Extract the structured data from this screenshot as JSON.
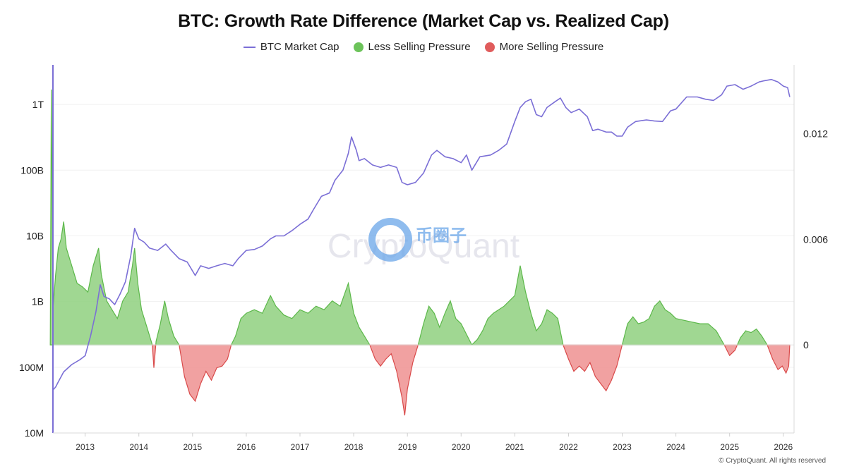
{
  "title": "BTC: Growth Rate Difference (Market Cap vs. Realized Cap)",
  "legend": {
    "market_cap": {
      "label": "BTC Market Cap",
      "color": "#7b6fd6"
    },
    "less_selling": {
      "label": "Less Selling Pressure",
      "color": "#6cc35a"
    },
    "more_selling": {
      "label": "More Selling Pressure",
      "color": "#e05c5c"
    }
  },
  "watermark": "CryptoQuant",
  "watermark_cn": "币圈子",
  "copyright": "© CryptoQuant. All rights reserved",
  "chart_data": {
    "type": "line",
    "x_range": [
      2012.4,
      2026.2
    ],
    "x_ticks": [
      "2013",
      "2014",
      "2015",
      "2016",
      "2017",
      "2018",
      "2019",
      "2020",
      "2021",
      "2022",
      "2023",
      "2024",
      "2025",
      "2026"
    ],
    "y_left": {
      "scale": "log",
      "range": [
        10000000,
        4000000000000
      ],
      "ticks": [
        "10M",
        "100M",
        "1B",
        "10B",
        "100B",
        "1T"
      ]
    },
    "y_right": {
      "scale": "linear",
      "range": [
        -0.005,
        0.0159
      ],
      "ticks": [
        "0",
        "0.006",
        "0.012"
      ]
    },
    "series": [
      {
        "name": "BTC Market Cap",
        "axis": "left",
        "points": [
          [
            2012.4,
            45000000
          ],
          [
            2012.45,
            50000000
          ],
          [
            2012.5,
            60000000
          ],
          [
            2012.6,
            85000000
          ],
          [
            2012.75,
            110000000
          ],
          [
            2012.9,
            130000000
          ],
          [
            2013.0,
            150000000
          ],
          [
            2013.1,
            300000000
          ],
          [
            2013.2,
            700000000
          ],
          [
            2013.28,
            1800000000
          ],
          [
            2013.35,
            1200000000
          ],
          [
            2013.45,
            1100000000
          ],
          [
            2013.55,
            900000000
          ],
          [
            2013.65,
            1300000000
          ],
          [
            2013.75,
            2000000000
          ],
          [
            2013.85,
            5000000000
          ],
          [
            2013.92,
            13000000000
          ],
          [
            2014.0,
            9000000000
          ],
          [
            2014.1,
            8000000000
          ],
          [
            2014.2,
            6500000000
          ],
          [
            2014.35,
            6000000000
          ],
          [
            2014.5,
            7500000000
          ],
          [
            2014.6,
            6000000000
          ],
          [
            2014.75,
            4500000000
          ],
          [
            2014.9,
            4000000000
          ],
          [
            2015.05,
            2500000000
          ],
          [
            2015.15,
            3500000000
          ],
          [
            2015.3,
            3200000000
          ],
          [
            2015.45,
            3500000000
          ],
          [
            2015.6,
            3800000000
          ],
          [
            2015.75,
            3500000000
          ],
          [
            2015.85,
            4500000000
          ],
          [
            2016.0,
            6000000000
          ],
          [
            2016.15,
            6200000000
          ],
          [
            2016.3,
            7000000000
          ],
          [
            2016.45,
            9000000000
          ],
          [
            2016.55,
            10000000000
          ],
          [
            2016.7,
            10000000000
          ],
          [
            2016.85,
            12000000000
          ],
          [
            2017.0,
            15000000000
          ],
          [
            2017.15,
            18000000000
          ],
          [
            2017.25,
            25000000000
          ],
          [
            2017.4,
            40000000000
          ],
          [
            2017.55,
            45000000000
          ],
          [
            2017.65,
            70000000000
          ],
          [
            2017.8,
            100000000000
          ],
          [
            2017.9,
            180000000000
          ],
          [
            2017.96,
            320000000000
          ],
          [
            2018.05,
            200000000000
          ],
          [
            2018.1,
            140000000000
          ],
          [
            2018.2,
            150000000000
          ],
          [
            2018.35,
            120000000000
          ],
          [
            2018.5,
            110000000000
          ],
          [
            2018.65,
            120000000000
          ],
          [
            2018.8,
            110000000000
          ],
          [
            2018.9,
            65000000000
          ],
          [
            2019.0,
            60000000000
          ],
          [
            2019.15,
            65000000000
          ],
          [
            2019.3,
            90000000000
          ],
          [
            2019.45,
            170000000000
          ],
          [
            2019.55,
            200000000000
          ],
          [
            2019.7,
            160000000000
          ],
          [
            2019.85,
            150000000000
          ],
          [
            2020.0,
            130000000000
          ],
          [
            2020.1,
            170000000000
          ],
          [
            2020.2,
            100000000000
          ],
          [
            2020.35,
            160000000000
          ],
          [
            2020.55,
            170000000000
          ],
          [
            2020.7,
            200000000000
          ],
          [
            2020.85,
            250000000000
          ],
          [
            2021.0,
            550000000000
          ],
          [
            2021.1,
            900000000000
          ],
          [
            2021.2,
            1100000000000
          ],
          [
            2021.3,
            1200000000000
          ],
          [
            2021.4,
            700000000000
          ],
          [
            2021.5,
            650000000000
          ],
          [
            2021.6,
            900000000000
          ],
          [
            2021.75,
            1100000000000
          ],
          [
            2021.85,
            1250000000000
          ],
          [
            2021.95,
            900000000000
          ],
          [
            2022.05,
            750000000000
          ],
          [
            2022.2,
            850000000000
          ],
          [
            2022.35,
            650000000000
          ],
          [
            2022.45,
            400000000000
          ],
          [
            2022.55,
            420000000000
          ],
          [
            2022.7,
            380000000000
          ],
          [
            2022.8,
            380000000000
          ],
          [
            2022.9,
            330000000000
          ],
          [
            2023.0,
            330000000000
          ],
          [
            2023.1,
            450000000000
          ],
          [
            2023.25,
            550000000000
          ],
          [
            2023.45,
            580000000000
          ],
          [
            2023.6,
            560000000000
          ],
          [
            2023.75,
            550000000000
          ],
          [
            2023.9,
            800000000000
          ],
          [
            2024.0,
            850000000000
          ],
          [
            2024.2,
            1300000000000
          ],
          [
            2024.4,
            1300000000000
          ],
          [
            2024.55,
            1200000000000
          ],
          [
            2024.7,
            1150000000000
          ],
          [
            2024.85,
            1400000000000
          ],
          [
            2024.95,
            1900000000000
          ],
          [
            2025.1,
            2000000000000
          ],
          [
            2025.25,
            1700000000000
          ],
          [
            2025.4,
            1900000000000
          ],
          [
            2025.55,
            2200000000000
          ],
          [
            2025.65,
            2300000000000
          ],
          [
            2025.78,
            2400000000000
          ],
          [
            2025.9,
            2200000000000
          ],
          [
            2026.0,
            1900000000000
          ],
          [
            2026.08,
            1800000000000
          ],
          [
            2026.12,
            1300000000000
          ]
        ]
      },
      {
        "name": "Growth Rate Difference",
        "axis": "right",
        "points": [
          [
            2012.35,
            0.0
          ],
          [
            2012.37,
            0.0145
          ],
          [
            2012.4,
            0.002
          ],
          [
            2012.45,
            0.004
          ],
          [
            2012.5,
            0.0055
          ],
          [
            2012.55,
            0.006
          ],
          [
            2012.6,
            0.007
          ],
          [
            2012.65,
            0.0055
          ],
          [
            2012.75,
            0.0045
          ],
          [
            2012.85,
            0.0035
          ],
          [
            2012.95,
            0.0033
          ],
          [
            2013.05,
            0.003
          ],
          [
            2013.15,
            0.0045
          ],
          [
            2013.25,
            0.0055
          ],
          [
            2013.3,
            0.004
          ],
          [
            2013.4,
            0.0025
          ],
          [
            2013.5,
            0.002
          ],
          [
            2013.6,
            0.0015
          ],
          [
            2013.7,
            0.0025
          ],
          [
            2013.8,
            0.003
          ],
          [
            2013.88,
            0.0045
          ],
          [
            2013.92,
            0.0055
          ],
          [
            2013.98,
            0.0035
          ],
          [
            2014.05,
            0.002
          ],
          [
            2014.15,
            0.001
          ],
          [
            2014.25,
            0.0
          ],
          [
            2014.28,
            -0.0013
          ],
          [
            2014.32,
            0.0002
          ],
          [
            2014.4,
            0.0012
          ],
          [
            2014.48,
            0.0025
          ],
          [
            2014.55,
            0.0015
          ],
          [
            2014.65,
            0.0005
          ],
          [
            2014.75,
            0.0
          ],
          [
            2014.85,
            -0.0018
          ],
          [
            2014.95,
            -0.0028
          ],
          [
            2015.05,
            -0.0032
          ],
          [
            2015.15,
            -0.0022
          ],
          [
            2015.25,
            -0.0015
          ],
          [
            2015.35,
            -0.002
          ],
          [
            2015.45,
            -0.0013
          ],
          [
            2015.55,
            -0.0012
          ],
          [
            2015.65,
            -0.0008
          ],
          [
            2015.72,
            0.0
          ],
          [
            2015.8,
            0.0005
          ],
          [
            2015.9,
            0.0015
          ],
          [
            2016.0,
            0.0018
          ],
          [
            2016.15,
            0.002
          ],
          [
            2016.3,
            0.0018
          ],
          [
            2016.45,
            0.0028
          ],
          [
            2016.55,
            0.0022
          ],
          [
            2016.7,
            0.0017
          ],
          [
            2016.85,
            0.0015
          ],
          [
            2017.0,
            0.002
          ],
          [
            2017.15,
            0.0018
          ],
          [
            2017.3,
            0.0022
          ],
          [
            2017.45,
            0.002
          ],
          [
            2017.6,
            0.0025
          ],
          [
            2017.75,
            0.0022
          ],
          [
            2017.9,
            0.0035
          ],
          [
            2018.0,
            0.0018
          ],
          [
            2018.1,
            0.001
          ],
          [
            2018.2,
            0.0005
          ],
          [
            2018.3,
            0.0
          ],
          [
            2018.4,
            -0.0008
          ],
          [
            2018.5,
            -0.0012
          ],
          [
            2018.6,
            -0.0008
          ],
          [
            2018.7,
            -0.0005
          ],
          [
            2018.8,
            -0.0015
          ],
          [
            2018.9,
            -0.003
          ],
          [
            2018.95,
            -0.004
          ],
          [
            2019.0,
            -0.0025
          ],
          [
            2019.1,
            -0.001
          ],
          [
            2019.2,
            0.0
          ],
          [
            2019.3,
            0.0012
          ],
          [
            2019.4,
            0.0022
          ],
          [
            2019.5,
            0.0018
          ],
          [
            2019.6,
            0.001
          ],
          [
            2019.7,
            0.0018
          ],
          [
            2019.8,
            0.0025
          ],
          [
            2019.9,
            0.0015
          ],
          [
            2020.0,
            0.0012
          ],
          [
            2020.1,
            0.0006
          ],
          [
            2020.2,
            0.0
          ],
          [
            2020.3,
            0.0003
          ],
          [
            2020.4,
            0.0008
          ],
          [
            2020.5,
            0.0015
          ],
          [
            2020.6,
            0.0018
          ],
          [
            2020.7,
            0.002
          ],
          [
            2020.8,
            0.0022
          ],
          [
            2020.9,
            0.0025
          ],
          [
            2021.0,
            0.0028
          ],
          [
            2021.1,
            0.0045
          ],
          [
            2021.2,
            0.003
          ],
          [
            2021.3,
            0.0018
          ],
          [
            2021.4,
            0.0008
          ],
          [
            2021.5,
            0.0012
          ],
          [
            2021.6,
            0.002
          ],
          [
            2021.7,
            0.0018
          ],
          [
            2021.8,
            0.0015
          ],
          [
            2021.9,
            0.0
          ],
          [
            2022.0,
            -0.0008
          ],
          [
            2022.1,
            -0.0015
          ],
          [
            2022.2,
            -0.0012
          ],
          [
            2022.3,
            -0.0015
          ],
          [
            2022.4,
            -0.001
          ],
          [
            2022.5,
            -0.0018
          ],
          [
            2022.6,
            -0.0022
          ],
          [
            2022.7,
            -0.0026
          ],
          [
            2022.8,
            -0.002
          ],
          [
            2022.9,
            -0.0012
          ],
          [
            2023.0,
            0.0
          ],
          [
            2023.1,
            0.0012
          ],
          [
            2023.2,
            0.0016
          ],
          [
            2023.3,
            0.0012
          ],
          [
            2023.4,
            0.0013
          ],
          [
            2023.5,
            0.0015
          ],
          [
            2023.6,
            0.0022
          ],
          [
            2023.7,
            0.0025
          ],
          [
            2023.8,
            0.002
          ],
          [
            2023.9,
            0.0018
          ],
          [
            2024.0,
            0.0015
          ],
          [
            2024.15,
            0.0014
          ],
          [
            2024.3,
            0.0013
          ],
          [
            2024.45,
            0.0012
          ],
          [
            2024.6,
            0.0012
          ],
          [
            2024.75,
            0.0008
          ],
          [
            2024.9,
            0.0
          ],
          [
            2025.0,
            -0.0006
          ],
          [
            2025.1,
            -0.0003
          ],
          [
            2025.2,
            0.0004
          ],
          [
            2025.3,
            0.0008
          ],
          [
            2025.4,
            0.0007
          ],
          [
            2025.5,
            0.0009
          ],
          [
            2025.6,
            0.0005
          ],
          [
            2025.7,
            0.0
          ],
          [
            2025.8,
            -0.0008
          ],
          [
            2025.9,
            -0.0014
          ],
          [
            2025.98,
            -0.0012
          ],
          [
            2026.05,
            -0.0016
          ],
          [
            2026.1,
            -0.0012
          ],
          [
            2026.12,
            0.0
          ]
        ]
      }
    ],
    "grid": true,
    "legend_position": "top-center"
  }
}
